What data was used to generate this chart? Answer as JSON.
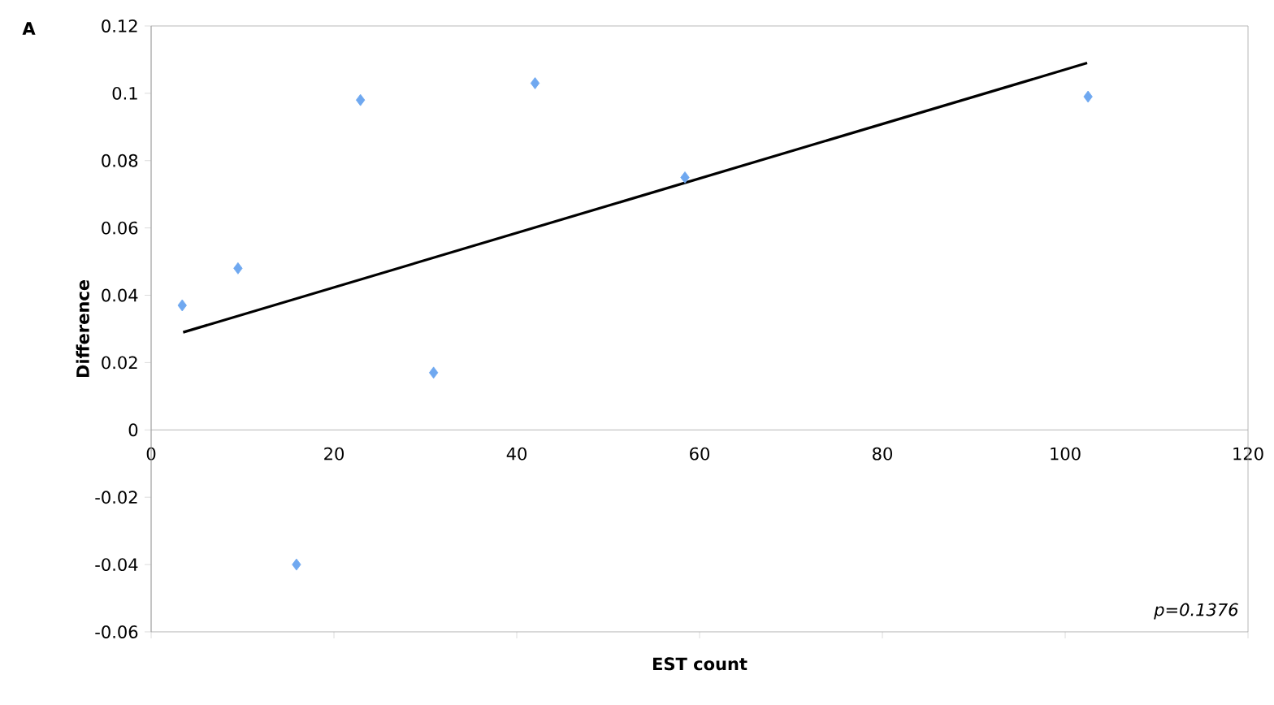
{
  "chart_data": {
    "type": "scatter",
    "xlabel": "EST count",
    "ylabel": "Difference",
    "annotations": [
      "A",
      "p=0.1376"
    ],
    "series": [
      {
        "type": "scatter",
        "color": "#6fa8f0",
        "marker": "diamond",
        "x": [
          3.4,
          9.5,
          15.9,
          22.9,
          30.9,
          42.0,
          58.4,
          102.5
        ],
        "values": [
          0.037,
          0.048,
          -0.04,
          0.098,
          0.017,
          0.103,
          0.075,
          0.099
        ]
      },
      {
        "type": "line",
        "color": "#000000",
        "marker": "none",
        "x": [
          3.5,
          102.4
        ],
        "values": [
          0.029,
          0.109
        ]
      }
    ],
    "xlim": [
      0,
      120
    ],
    "xticks": [
      0,
      20,
      40,
      60,
      80,
      100,
      120
    ],
    "ylim": [
      -0.06,
      0.12
    ],
    "yticks": [
      -0.06,
      -0.04,
      -0.02,
      0,
      0.02,
      0.04,
      0.06,
      0.08,
      0.1,
      0.12
    ],
    "grid": false
  }
}
